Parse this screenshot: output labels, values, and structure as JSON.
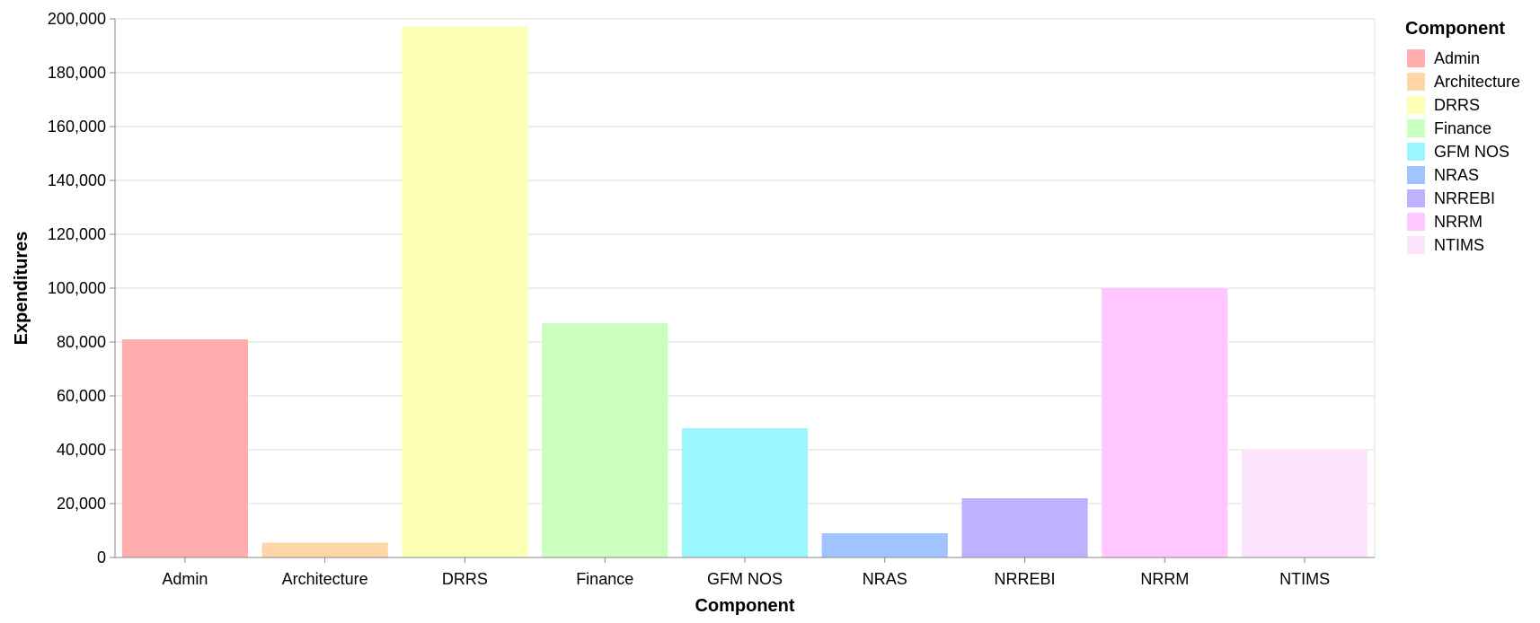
{
  "chart_data": {
    "type": "bar",
    "categories": [
      "Admin",
      "Architecture",
      "DRRS",
      "Finance",
      "GFM NOS",
      "NRAS",
      "NRREBI",
      "NRRM",
      "NTIMS"
    ],
    "values": [
      81000,
      5500,
      197000,
      87000,
      48000,
      9000,
      22000,
      100000,
      40000
    ],
    "colors": [
      "#ffadad",
      "#ffd6a5",
      "#fdffb6",
      "#caffbf",
      "#9bf6ff",
      "#a0c4ff",
      "#bdb2ff",
      "#ffc6ff",
      "#fde4ff"
    ],
    "xlabel": "Component",
    "ylabel": "Expenditures",
    "ylim": [
      0,
      200000
    ],
    "yticks": [
      0,
      20000,
      40000,
      60000,
      80000,
      100000,
      120000,
      140000,
      160000,
      180000,
      200000
    ],
    "grid": true,
    "legend": {
      "title": "Component",
      "position": "right",
      "items": [
        "Admin",
        "Architecture",
        "DRRS",
        "Finance",
        "GFM NOS",
        "NRAS",
        "NRREBI",
        "NRRM",
        "NTIMS"
      ]
    }
  }
}
